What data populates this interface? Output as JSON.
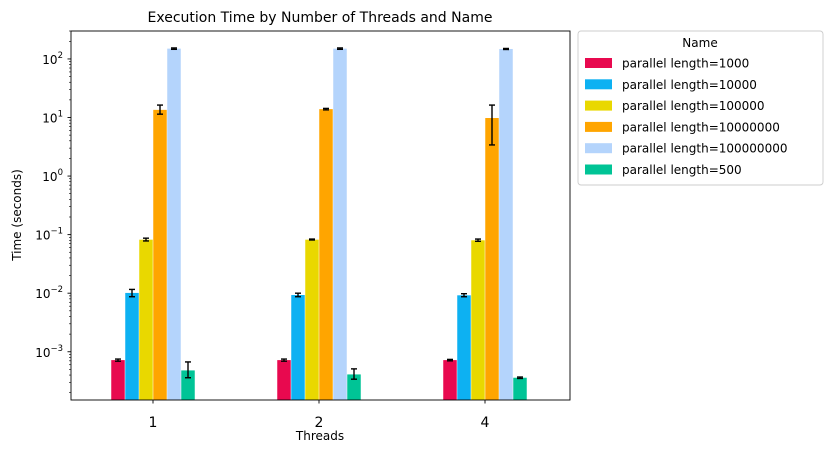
{
  "chart_data": {
    "type": "bar",
    "title": "Execution Time by Number of Threads and Name",
    "xlabel": "Threads",
    "ylabel": "Time (seconds)",
    "yscale": "log",
    "ylim": [
      0.00015,
      300
    ],
    "grid": false,
    "categories": [
      "1",
      "2",
      "4"
    ],
    "y_ticks": [
      {
        "value": 0.001,
        "base": "10",
        "exp": "−3"
      },
      {
        "value": 0.01,
        "base": "10",
        "exp": "−2"
      },
      {
        "value": 0.1,
        "base": "10",
        "exp": "−1"
      },
      {
        "value": 1,
        "base": "10",
        "exp": "0"
      },
      {
        "value": 10,
        "base": "10",
        "exp": "1"
      },
      {
        "value": 100,
        "base": "10",
        "exp": "2"
      }
    ],
    "legend": {
      "title": "Name",
      "placement": "outside-top-right"
    },
    "series": [
      {
        "name": "parallel length=1000",
        "color": "#e8094f",
        "values": [
          0.00072,
          0.00072,
          0.00072
        ],
        "err_low": [
          0.00069,
          0.00069,
          0.0007
        ],
        "err_high": [
          0.00075,
          0.00075,
          0.00074
        ]
      },
      {
        "name": "parallel length=10000",
        "color": "#0db1f2",
        "values": [
          0.0101,
          0.0093,
          0.0092
        ],
        "err_low": [
          0.0087,
          0.0087,
          0.0087
        ],
        "err_high": [
          0.0116,
          0.01,
          0.0098
        ]
      },
      {
        "name": "parallel length=100000",
        "color": "#e9d800",
        "values": [
          0.082,
          0.082,
          0.08
        ],
        "err_low": [
          0.078,
          0.081,
          0.077
        ],
        "err_high": [
          0.087,
          0.084,
          0.084
        ]
      },
      {
        "name": "parallel length=10000000",
        "color": "#ffa500",
        "values": [
          13.5,
          13.9,
          9.8
        ],
        "err_low": [
          11.4,
          13.5,
          3.4
        ],
        "err_high": [
          16.3,
          14.3,
          16.3
        ]
      },
      {
        "name": "parallel length=100000000",
        "color": "#b4d4fc",
        "values": [
          150,
          150,
          148
        ],
        "err_low": [
          146,
          146,
          145
        ],
        "err_high": [
          154,
          154,
          151
        ]
      },
      {
        "name": "parallel length=500",
        "color": "#00c496",
        "values": [
          0.00048,
          0.00041,
          0.00036
        ],
        "err_low": [
          0.00036,
          0.00034,
          0.00035
        ],
        "err_high": [
          0.00067,
          0.00051,
          0.00037
        ]
      }
    ]
  }
}
